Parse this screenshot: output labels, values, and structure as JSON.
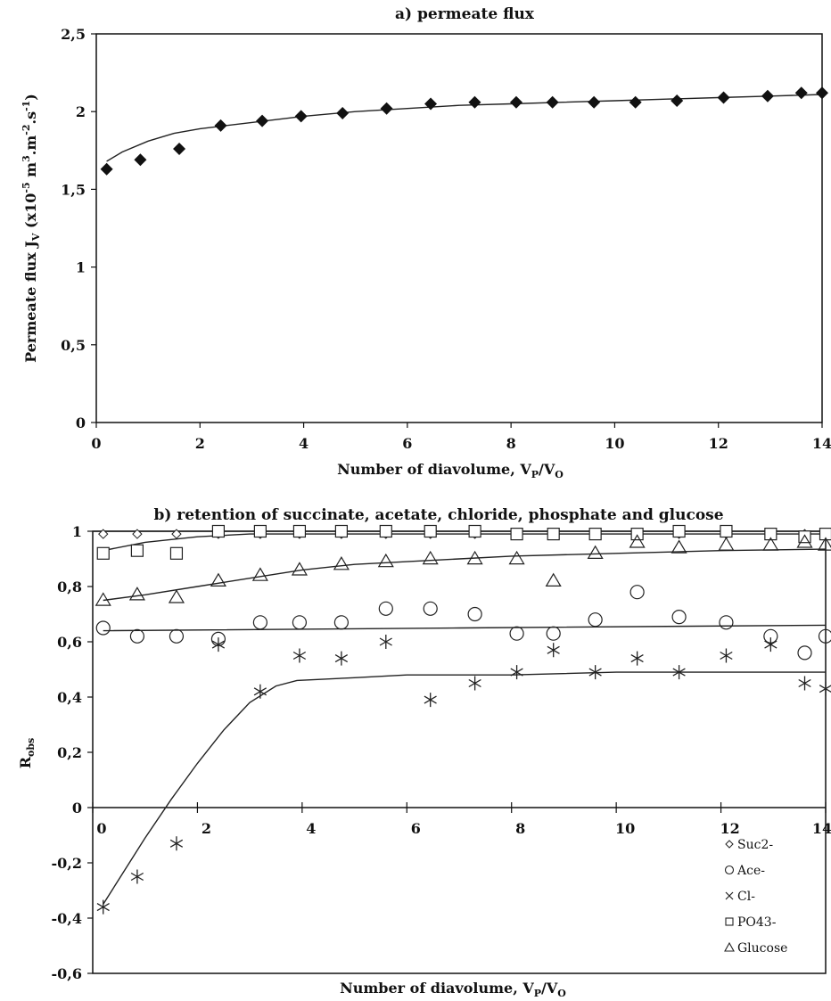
{
  "chart_data": [
    {
      "type": "scatter",
      "title": "a) permeate flux",
      "xlabel": "Number of diavolume, V_P/V_O",
      "ylabel": "Permeate flux J_V (x10^-5 m^3.m^-2.s^-1)",
      "xlim": [
        0,
        14
      ],
      "ylim": [
        0,
        2.5
      ],
      "x_ticks": [
        "0",
        "2",
        "4",
        "6",
        "8",
        "10",
        "12",
        "14"
      ],
      "y_ticks": [
        "0",
        "0,5",
        "1",
        "1,5",
        "2",
        "2,5"
      ],
      "grid": false,
      "series": [
        {
          "marker": "filled-diamond",
          "x": [
            0.2,
            0.85,
            1.6,
            2.4,
            3.2,
            3.95,
            4.75,
            5.6,
            6.45,
            7.3,
            8.1,
            8.8,
            9.6,
            10.4,
            11.2,
            12.1,
            12.95,
            13.6,
            14.0
          ],
          "y": [
            1.63,
            1.69,
            1.76,
            1.91,
            1.94,
            1.97,
            1.99,
            2.02,
            2.05,
            2.06,
            2.06,
            2.06,
            2.06,
            2.06,
            2.07,
            2.09,
            2.1,
            2.12,
            2.12
          ]
        }
      ],
      "trend_line": {
        "x": [
          0.2,
          0.5,
          1,
          1.5,
          2,
          2.5,
          3,
          3.5,
          4,
          5,
          6,
          7,
          8,
          9,
          10,
          11,
          12,
          13,
          14
        ],
        "y": [
          1.68,
          1.74,
          1.81,
          1.86,
          1.89,
          1.91,
          1.93,
          1.95,
          1.97,
          2.0,
          2.02,
          2.04,
          2.05,
          2.06,
          2.07,
          2.08,
          2.09,
          2.1,
          2.11
        ]
      }
    },
    {
      "type": "scatter",
      "title": "b) retention of succinate, acetate, chloride, phosphate and glucose",
      "xlabel": "Number of diavolume, V_P/V_O",
      "ylabel": "R_obs",
      "xlim": [
        0,
        14
      ],
      "ylim": [
        -0.6,
        1
      ],
      "x_ticks": [
        "0",
        "2",
        "4",
        "6",
        "8",
        "10",
        "12",
        "14"
      ],
      "y_ticks": [
        "-0,6",
        "-0,4",
        "-0,2",
        "0",
        "0,2",
        "0,4",
        "0,6",
        "0,8",
        "1"
      ],
      "grid": false,
      "legend_position": "bottom-right",
      "series": [
        {
          "name": "Suc2-",
          "marker": "open-diamond",
          "x": [
            0.2,
            0.85,
            1.6,
            2.4,
            3.2,
            3.95,
            4.75,
            5.6,
            6.45,
            7.3,
            8.1,
            8.8,
            9.6,
            10.4,
            11.2,
            12.1,
            12.95,
            13.6,
            14.0
          ],
          "y": [
            0.99,
            0.99,
            0.99,
            0.99,
            0.99,
            0.99,
            0.99,
            0.99,
            0.99,
            0.99,
            0.99,
            0.99,
            0.99,
            0.99,
            0.99,
            0.99,
            0.99,
            0.99,
            0.99
          ],
          "trend_line": {
            "x": [
              0,
              14
            ],
            "y": [
              1.0,
              1.0
            ]
          }
        },
        {
          "name": "Ace-",
          "marker": "open-circle",
          "x": [
            0.2,
            0.85,
            1.6,
            2.4,
            3.2,
            3.95,
            4.75,
            5.6,
            6.45,
            7.3,
            8.1,
            8.8,
            9.6,
            10.4,
            11.2,
            12.1,
            12.95,
            13.6,
            14.0
          ],
          "y": [
            0.65,
            0.62,
            0.62,
            0.61,
            0.67,
            0.67,
            0.67,
            0.72,
            0.72,
            0.7,
            0.63,
            0.63,
            0.68,
            0.78,
            0.69,
            0.67,
            0.62,
            0.56,
            0.62
          ],
          "trend_line": {
            "x": [
              0.2,
              7,
              14
            ],
            "y": [
              0.64,
              0.65,
              0.66
            ]
          }
        },
        {
          "name": "Cl-",
          "marker": "asterisk",
          "x": [
            0.2,
            0.85,
            1.6,
            2.4,
            3.2,
            3.95,
            4.75,
            5.6,
            6.45,
            7.3,
            8.1,
            8.8,
            9.6,
            10.4,
            11.2,
            12.1,
            12.95,
            13.6,
            14.0
          ],
          "y": [
            -0.36,
            -0.25,
            -0.13,
            0.59,
            0.42,
            0.55,
            0.54,
            0.6,
            0.39,
            0.45,
            0.49,
            0.57,
            0.49,
            0.54,
            0.49,
            0.55,
            0.59,
            0.45,
            0.43
          ],
          "trend_line": {
            "x": [
              0.2,
              0.6,
              1,
              1.5,
              2,
              2.5,
              3,
              3.5,
              3.9,
              5,
              6,
              8,
              10,
              12,
              14
            ],
            "y": [
              -0.35,
              -0.23,
              -0.11,
              0.03,
              0.16,
              0.28,
              0.38,
              0.44,
              0.46,
              0.47,
              0.48,
              0.48,
              0.49,
              0.49,
              0.49
            ]
          }
        },
        {
          "name": "PO43-",
          "marker": "open-square",
          "x": [
            0.2,
            0.85,
            1.6,
            2.4,
            3.2,
            3.95,
            4.75,
            5.6,
            6.45,
            7.3,
            8.1,
            8.8,
            9.6,
            10.4,
            11.2,
            12.1,
            12.95,
            13.6,
            14.0
          ],
          "y": [
            0.92,
            0.93,
            0.92,
            1.0,
            1.0,
            1.0,
            1.0,
            1.0,
            1.0,
            1.0,
            0.99,
            0.99,
            0.99,
            0.99,
            1.0,
            1.0,
            0.99,
            0.98,
            0.99
          ],
          "trend_line": {
            "x": [
              0.2,
              1,
              2,
              3,
              4,
              6,
              8,
              10,
              12,
              14
            ],
            "y": [
              0.93,
              0.96,
              0.98,
              0.99,
              0.99,
              0.99,
              0.99,
              0.99,
              0.99,
              0.99
            ]
          }
        },
        {
          "name": "Glucose",
          "marker": "open-triangle",
          "x": [
            0.2,
            0.85,
            1.6,
            2.4,
            3.2,
            3.95,
            4.75,
            5.6,
            6.45,
            7.3,
            8.1,
            8.8,
            9.6,
            10.4,
            11.2,
            12.1,
            12.95,
            13.6,
            14.0
          ],
          "y": [
            0.75,
            0.77,
            0.76,
            0.82,
            0.84,
            0.86,
            0.88,
            0.89,
            0.9,
            0.9,
            0.9,
            0.82,
            0.92,
            0.96,
            0.94,
            0.95,
            0.95,
            0.96,
            0.95
          ],
          "trend_line": {
            "x": [
              0.2,
              1,
              2,
              3,
              4,
              5,
              6,
              7,
              8,
              10,
              12,
              14
            ],
            "y": [
              0.75,
              0.77,
              0.8,
              0.83,
              0.86,
              0.88,
              0.89,
              0.9,
              0.91,
              0.92,
              0.93,
              0.935
            ]
          }
        }
      ]
    }
  ]
}
